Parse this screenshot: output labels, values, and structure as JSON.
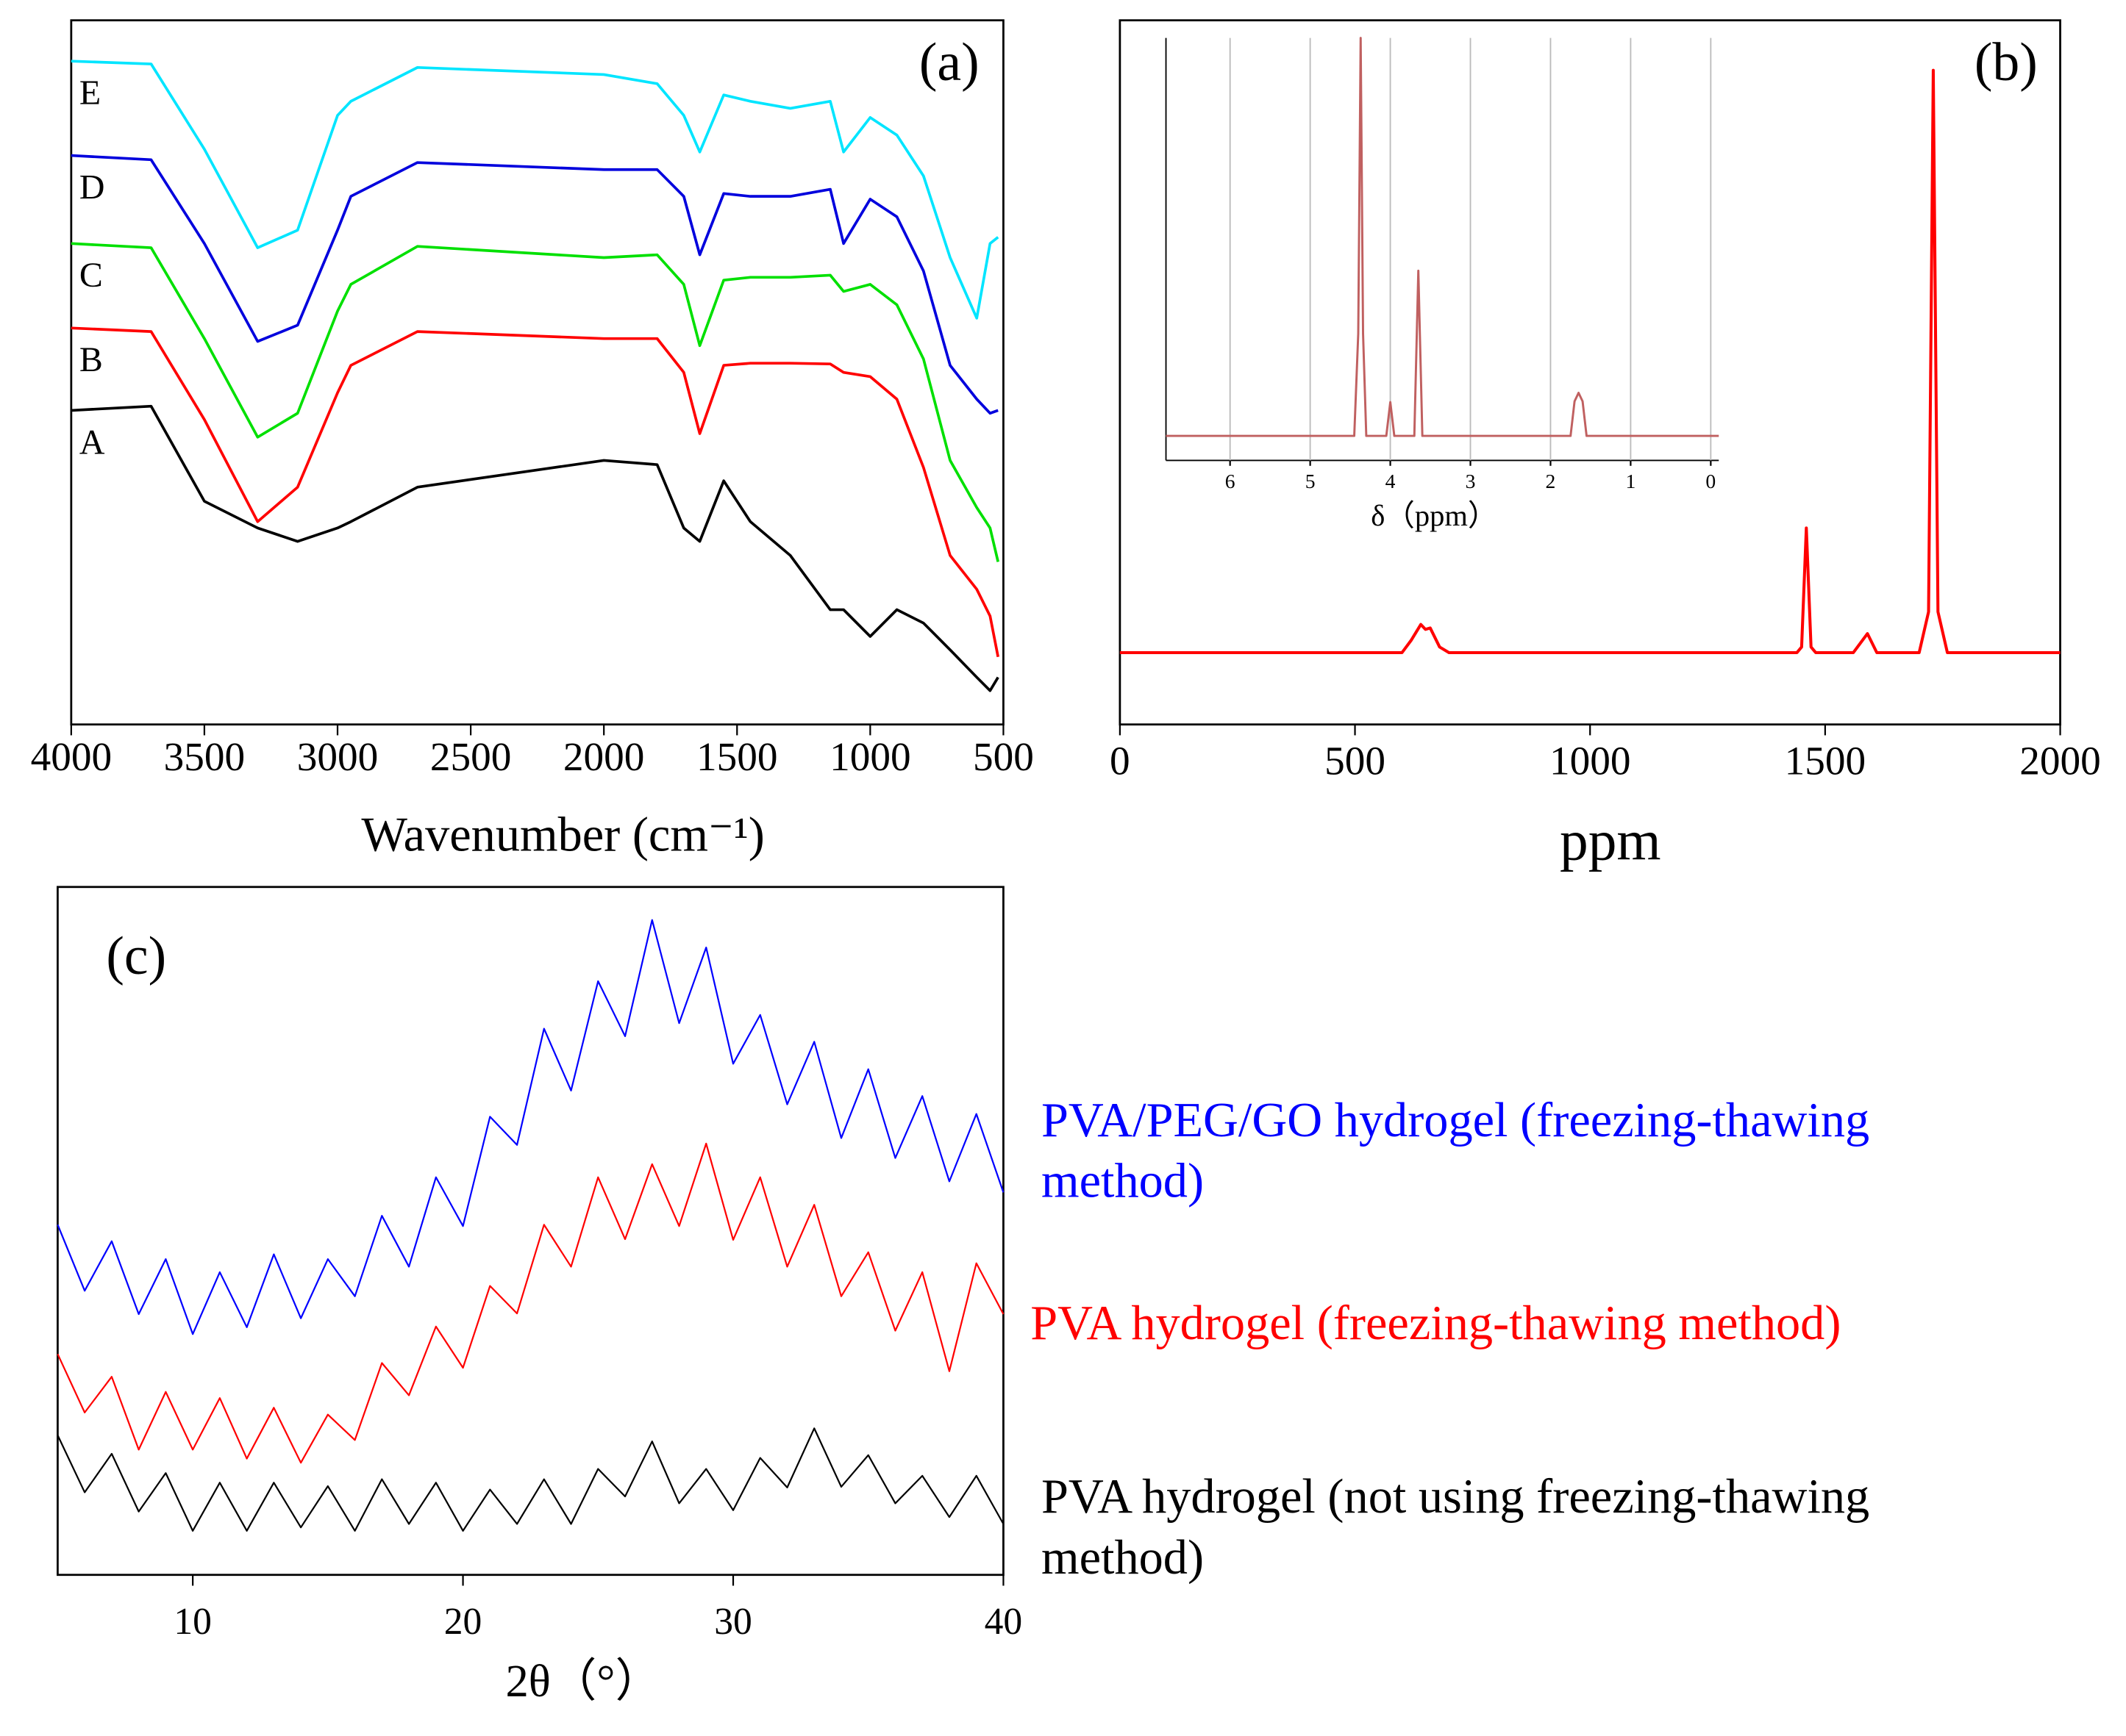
{
  "chart_data": [
    {
      "type": "line",
      "panel_label": "(a)",
      "xlabel": "Wavenumber (cm⁻¹)",
      "xlim": [
        4000,
        500
      ],
      "xticks": [
        4000,
        3500,
        3000,
        2500,
        2000,
        1500,
        1000,
        500
      ],
      "ylim": [
        0,
        100
      ],
      "x": [
        4000,
        3700,
        3500,
        3300,
        3150,
        3000,
        2950,
        2700,
        2000,
        1800,
        1700,
        1640,
        1550,
        1450,
        1300,
        1150,
        1100,
        1000,
        900,
        800,
        700,
        600,
        550,
        520
      ],
      "series": [
        {
          "name": "E",
          "color": "#00e5ff",
          "values": [
            94.2,
            93.8,
            81.7,
            67.7,
            70.2,
            86.5,
            88.5,
            93.3,
            92.3,
            91.0,
            86.5,
            81.3,
            89.4,
            88.5,
            87.5,
            88.5,
            81.3,
            86.2,
            83.7,
            77.9,
            66.3,
            57.7,
            68.3,
            69.2
          ]
        },
        {
          "name": "D",
          "color": "#0000dd",
          "values": [
            80.8,
            80.2,
            68.3,
            54.4,
            56.7,
            70.2,
            75,
            79.8,
            78.8,
            78.8,
            75,
            66.7,
            75.4,
            75,
            75,
            76,
            68.3,
            74.6,
            72.1,
            64.4,
            51,
            46.2,
            44.2,
            44.6
          ]
        },
        {
          "name": "C",
          "color": "#00e000",
          "values": [
            68.3,
            67.7,
            54.8,
            40.8,
            44.2,
            58.7,
            62.5,
            67.9,
            66.3,
            66.7,
            62.5,
            53.8,
            63.1,
            63.5,
            63.5,
            63.8,
            61.5,
            62.5,
            59.6,
            51.9,
            37.5,
            30.8,
            27.9,
            23.1
          ]
        },
        {
          "name": "B",
          "color": "#ff0000",
          "values": [
            56.3,
            55.8,
            43.3,
            28.8,
            33.7,
            47.1,
            51,
            55.8,
            54.8,
            54.8,
            50,
            41.3,
            51,
            51.3,
            51.3,
            51.2,
            50,
            49.4,
            46.2,
            36.5,
            24,
            19.2,
            15.4,
            9.6
          ]
        },
        {
          "name": "A",
          "color": "#000000",
          "values": [
            44.6,
            45.2,
            31.7,
            27.9,
            26,
            27.9,
            28.8,
            33.7,
            37.5,
            36.9,
            27.9,
            26,
            34.6,
            28.8,
            24,
            16.3,
            16.3,
            12.5,
            16.3,
            14.4,
            10.6,
            6.7,
            4.8,
            6.7
          ]
        }
      ]
    },
    {
      "type": "line",
      "panel_label": "(b)",
      "xlabel": "ppm",
      "xlim": [
        0,
        2000
      ],
      "xticks": [
        0,
        500,
        1000,
        1500,
        2000
      ],
      "ylim": [
        0,
        100
      ],
      "x": [
        0,
        600,
        620,
        640,
        650,
        660,
        680,
        700,
        1440,
        1450,
        1460,
        1470,
        1480,
        1560,
        1590,
        1610,
        1700,
        1720,
        1730,
        1740,
        1760,
        2000
      ],
      "series": [
        {
          "color": "#ff0000",
          "values": [
            10.2,
            10.2,
            12,
            14.2,
            13.5,
            13.7,
            11,
            10.2,
            10.2,
            11,
            27.9,
            11,
            10.2,
            10.2,
            12.9,
            10.2,
            10.2,
            16,
            92.9,
            16,
            10.2,
            10.2
          ]
        }
      ]
    },
    {
      "type": "line",
      "xlabel": "δ（ppm）",
      "grid": true,
      "xlim": [
        6.8,
        -0.1
      ],
      "xticks": [
        6,
        5,
        4,
        3,
        2,
        1,
        0
      ],
      "ylim": [
        0,
        100
      ],
      "x": [
        6.8,
        4.45,
        4.4,
        4.37,
        4.34,
        4.3,
        4.05,
        4.0,
        3.95,
        3.7,
        3.65,
        3.6,
        1.75,
        1.7,
        1.65,
        1.6,
        1.55,
        -0.1
      ],
      "series": [
        {
          "color": "#c06060",
          "values": [
            5.8,
            5.8,
            30,
            100,
            30,
            5.8,
            5.8,
            13.8,
            5.8,
            5.8,
            44.9,
            5.8,
            5.8,
            14,
            16,
            14,
            5.8,
            5.8
          ]
        }
      ]
    },
    {
      "type": "line",
      "panel_label": "(c)",
      "xlabel": "2θ（°）",
      "xlim": [
        5,
        40
      ],
      "xticks": [
        10,
        20,
        30,
        40
      ],
      "ylim": [
        0,
        100
      ],
      "x": [
        5,
        6,
        7,
        8,
        9,
        10,
        11,
        12,
        13,
        14,
        15,
        16,
        17,
        18,
        19,
        20,
        21,
        22,
        23,
        24,
        25,
        26,
        27,
        28,
        29,
        30,
        31,
        32,
        33,
        34,
        35,
        36,
        37,
        38,
        39,
        40
      ],
      "series": [
        {
          "name": "PVA/PEG/GO hydrogel (freezing-thawing method)",
          "color": "#0000ff",
          "values": [
            50.9,
            41.3,
            48.5,
            37.9,
            45.9,
            35,
            44,
            36,
            46.6,
            37.3,
            45.9,
            40.5,
            52.2,
            44.8,
            57.8,
            50.7,
            66.6,
            62.5,
            79.4,
            70.4,
            86.3,
            78.3,
            95.2,
            80.2,
            91.2,
            74.3,
            81.4,
            68.4,
            77.5,
            63.5,
            73.5,
            60.6,
            69.6,
            57.2,
            67,
            55.6
          ]
        },
        {
          "name": "PVA hydrogel (freezing-thawing method)",
          "color": "#ff0000",
          "values": [
            32.1,
            23.6,
            28.8,
            18.2,
            26.6,
            18.2,
            25.7,
            16.9,
            24.3,
            16.3,
            23.3,
            19.6,
            30.8,
            26.1,
            36.1,
            30.1,
            42,
            38,
            50.9,
            44.8,
            57.8,
            48.8,
            59.7,
            50.7,
            62.7,
            48.7,
            57.8,
            44.8,
            53.8,
            40.5,
            46.9,
            35.5,
            44,
            29.6,
            45.3,
            37.9
          ]
        },
        {
          "name": "PVA hydrogel (not using freezing-thawing method)",
          "color": "#000000",
          "values": [
            20.3,
            12,
            17.6,
            9.2,
            14.8,
            6.4,
            13.4,
            6.4,
            13.4,
            6.9,
            12.9,
            6.4,
            13.9,
            7.4,
            13.4,
            6.4,
            12.4,
            7.4,
            13.9,
            7.4,
            15.4,
            11.4,
            19.4,
            10.4,
            15.4,
            9.4,
            17,
            12.7,
            21.3,
            12.8,
            17.4,
            10.4,
            14.4,
            8.4,
            14.4,
            7.4
          ]
        }
      ]
    }
  ]
}
